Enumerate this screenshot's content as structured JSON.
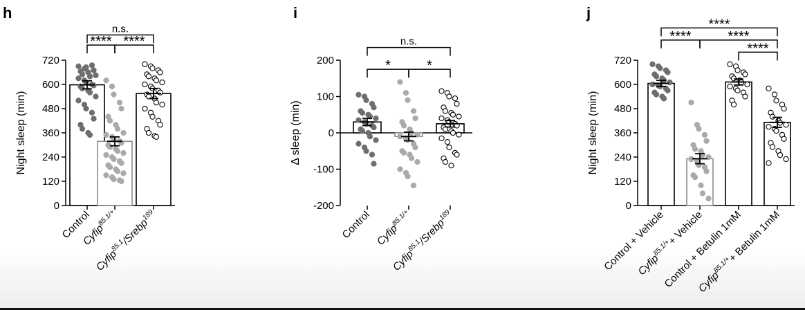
{
  "colors": {
    "dark_dot": "#6e6e6e",
    "light_dot": "#aaaaaa",
    "open_dot_fill": "#ffffff",
    "bar_stroke": "#000000",
    "light_bar_stroke": "#8c8c8c"
  },
  "chart_data": [
    {
      "panel": "h",
      "type": "bar",
      "ylabel": "Night sleep (min)",
      "ylim": [
        0,
        720
      ],
      "yticks": [
        "0",
        "120",
        "240",
        "360",
        "480",
        "600",
        "720"
      ],
      "categories": [
        "Control",
        "Cyfip85.1/+",
        "Cyfip85.1/Srebp189"
      ],
      "tick_labels": [
        {
          "main": "Control",
          "sup": ""
        },
        {
          "main": "Cyfip",
          "sup": "85.1/+"
        },
        {
          "main": "Cyfip",
          "sup": "85.1",
          "tail": "/Srebp",
          "sup2": "189"
        }
      ],
      "values": [
        598,
        318,
        555
      ],
      "sem": [
        20,
        22,
        25
      ],
      "dot_styles": [
        "dark",
        "light",
        "open"
      ],
      "points": [
        [
          690,
          678,
          685,
          695,
          670,
          665,
          650,
          660,
          640,
          645,
          630,
          620,
          610,
          600,
          595,
          590,
          580,
          570,
          560,
          540,
          520,
          500,
          480,
          460,
          430,
          400,
          380,
          360,
          350
        ],
        [
          620,
          590,
          550,
          510,
          480,
          440,
          420,
          400,
          380,
          360,
          350,
          340,
          330,
          320,
          310,
          300,
          290,
          280,
          270,
          260,
          250,
          240,
          230,
          220,
          210,
          200,
          190,
          180,
          170,
          160,
          150,
          140,
          130,
          125,
          120
        ],
        [
          700,
          690,
          680,
          670,
          660,
          650,
          640,
          630,
          620,
          610,
          600,
          590,
          580,
          570,
          560,
          550,
          540,
          530,
          510,
          500,
          480,
          460,
          440,
          420,
          400,
          380,
          360,
          345,
          340
        ]
      ],
      "significance": [
        {
          "from": 0,
          "to": 1,
          "label": "****",
          "y": 795
        },
        {
          "from": 1,
          "to": 2,
          "label": "****",
          "y": 795
        },
        {
          "from": 0,
          "to": 2,
          "label": "n.s.",
          "y": 845
        }
      ]
    },
    {
      "panel": "i",
      "type": "bar",
      "ylabel": "Δ sleep (min)",
      "ylim": [
        -200,
        200
      ],
      "yticks": [
        "-200",
        "-100",
        "0",
        "100",
        "200"
      ],
      "zero_line": true,
      "categories": [
        "Control",
        "Cyfip85.1/+",
        "Cyfip85.1/Srebp189"
      ],
      "tick_labels": [
        {
          "main": "Control",
          "sup": ""
        },
        {
          "main": "Cyfip",
          "sup": "85.1/+"
        },
        {
          "main": "Cyfip",
          "sup": "85.1",
          "tail": "/Srebp",
          "sup2": "189"
        }
      ],
      "values": [
        30,
        -10,
        25
      ],
      "sem": [
        10,
        12,
        9
      ],
      "dot_styles": [
        "dark",
        "light",
        "open"
      ],
      "points": [
        [
          105,
          100,
          90,
          80,
          70,
          60,
          55,
          50,
          45,
          40,
          35,
          30,
          25,
          20,
          15,
          10,
          5,
          0,
          -10,
          -20,
          -30,
          -40,
          -50,
          -60,
          -85
        ],
        [
          140,
          110,
          90,
          60,
          40,
          30,
          20,
          10,
          0,
          -5,
          -10,
          -15,
          -20,
          -30,
          -40,
          -50,
          -55,
          -60,
          -70,
          -80,
          -100,
          -110,
          -120,
          -145
        ],
        [
          115,
          110,
          100,
          95,
          80,
          70,
          60,
          55,
          50,
          45,
          40,
          35,
          30,
          25,
          20,
          15,
          10,
          5,
          0,
          -5,
          -15,
          -25,
          -40,
          -55,
          -60,
          -70,
          -80,
          -90
        ]
      ],
      "significance": [
        {
          "from": 0,
          "to": 1,
          "label": "*",
          "y": 175
        },
        {
          "from": 1,
          "to": 2,
          "label": "*",
          "y": 175
        },
        {
          "from": 0,
          "to": 2,
          "label": "n.s.",
          "y": 235
        }
      ]
    },
    {
      "panel": "j",
      "type": "bar",
      "ylabel": "Night sleep (min)",
      "ylim": [
        0,
        720
      ],
      "yticks": [
        "0",
        "120",
        "240",
        "360",
        "480",
        "600",
        "720"
      ],
      "categories": [
        "Control + Vehicle",
        "Cyfip85.1/+ + Vehicle",
        "Control + Betulin 1mM",
        "Cyfip85.1/+ + Betulin 1mM"
      ],
      "tick_labels": [
        {
          "main": "Control + Vehicle",
          "sup": ""
        },
        {
          "main": "Cyfip",
          "sup": "85.1/+",
          "tail": "+ Vehicle"
        },
        {
          "main": "Control + Betulin 1mM",
          "sup": ""
        },
        {
          "main": "Cyfip",
          "sup": "85.1/+",
          "tail": "+ Betulin 1mM"
        }
      ],
      "values": [
        605,
        232,
        612,
        412
      ],
      "sem": [
        15,
        25,
        15,
        25
      ],
      "dot_styles": [
        "dark",
        "light",
        "open",
        "open"
      ],
      "points": [
        [
          700,
          690,
          680,
          670,
          660,
          650,
          640,
          630,
          620,
          610,
          600,
          595,
          590,
          580,
          570,
          560,
          550,
          540,
          530
        ],
        [
          510,
          400,
          380,
          350,
          320,
          300,
          280,
          270,
          250,
          240,
          230,
          220,
          200,
          190,
          170,
          150,
          140,
          100,
          60,
          35
        ],
        [
          700,
          690,
          670,
          660,
          650,
          640,
          630,
          620,
          610,
          600,
          590,
          580,
          570,
          560,
          540,
          520,
          500
        ],
        [
          580,
          550,
          520,
          500,
          480,
          460,
          440,
          420,
          410,
          400,
          390,
          380,
          370,
          350,
          330,
          310,
          290,
          270,
          250,
          230,
          210
        ]
      ],
      "significance": [
        {
          "from": 2,
          "to": 3,
          "label": "****",
          "y": 760
        },
        {
          "from": 0,
          "to": 1,
          "label": "****",
          "y": 820
        },
        {
          "from": 1,
          "to": 3,
          "label": "****",
          "y": 820
        },
        {
          "from": 0,
          "to": 3,
          "label": "****",
          "y": 880
        }
      ]
    }
  ]
}
